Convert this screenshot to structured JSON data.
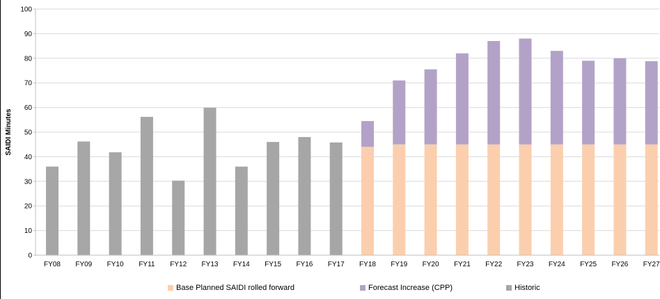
{
  "chart_data": {
    "type": "bar",
    "stacked": true,
    "title": "",
    "xlabel": "",
    "ylabel": "SAIDI Minutes",
    "ylim": [
      0,
      100
    ],
    "yticks": [
      0,
      10,
      20,
      30,
      40,
      50,
      60,
      70,
      80,
      90,
      100
    ],
    "grid": true,
    "legend_position": "bottom",
    "categories": [
      "FY08",
      "FY09",
      "FY10",
      "FY11",
      "FY12",
      "FY13",
      "FY14",
      "FY15",
      "FY16",
      "FY17",
      "FY18",
      "FY19",
      "FY20",
      "FY21",
      "FY22",
      "FY23",
      "FY24",
      "FY25",
      "FY26",
      "FY27"
    ],
    "series": [
      {
        "name": "Base Planned SAIDI rolled forward",
        "color": "#FBCFAD",
        "values": [
          0,
          0,
          0,
          0,
          0,
          0,
          0,
          0,
          0,
          0,
          44,
          45,
          45,
          45,
          45,
          45,
          45,
          45,
          45,
          45
        ]
      },
      {
        "name": "Forecast Increase (CPP)",
        "color": "#B3A2C7",
        "values": [
          0,
          0,
          0,
          0,
          0,
          0,
          0,
          0,
          0,
          0,
          10.5,
          26,
          30.5,
          37,
          42,
          43,
          38,
          34,
          35,
          33.8
        ]
      },
      {
        "name": "Historic",
        "color": "#A6A6A6",
        "values": [
          36,
          46.2,
          41.8,
          56.2,
          30.3,
          59.9,
          36,
          46,
          48,
          45.8,
          0,
          0,
          0,
          0,
          0,
          0,
          0,
          0,
          0,
          0
        ]
      }
    ]
  }
}
